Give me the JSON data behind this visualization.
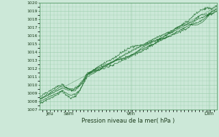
{
  "title": "",
  "xlabel": "Pression niveau de la mer( hPa )",
  "ylim": [
    1007,
    1020
  ],
  "yticks": [
    1007,
    1008,
    1009,
    1010,
    1011,
    1012,
    1013,
    1014,
    1015,
    1016,
    1017,
    1018,
    1019,
    1020
  ],
  "xtick_positions": [
    0.06,
    0.165,
    0.515,
    0.955
  ],
  "xtick_labels": [
    "Jeu",
    "Sam",
    "Ven",
    "Dim"
  ],
  "bg_color": "#cce8d8",
  "grid_color": "#99ccaa",
  "line_color": "#1a6b2a",
  "line_width": 0.5,
  "figsize": [
    3.2,
    2.0
  ],
  "dpi": 100
}
